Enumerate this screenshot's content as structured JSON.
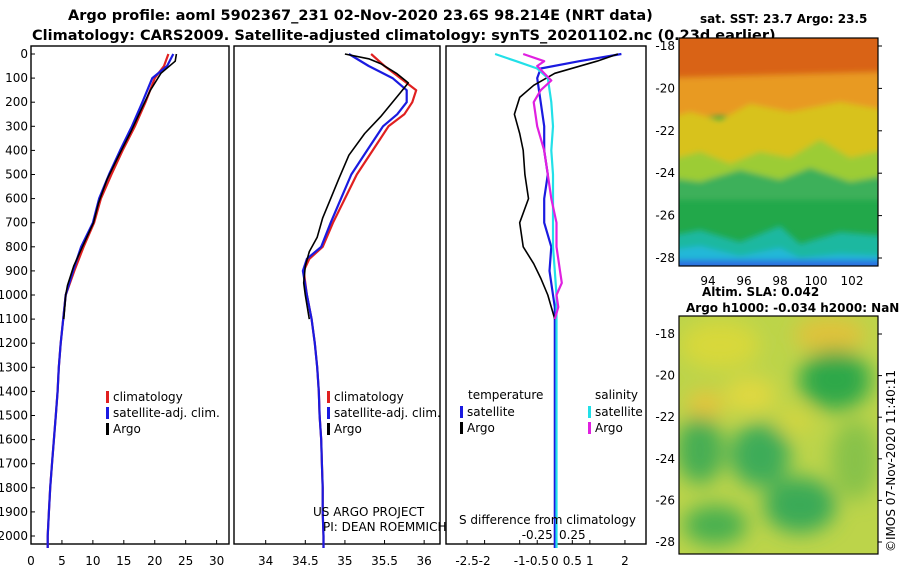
{
  "header": {
    "line1": "Argo profile: aoml 5902367_231 02-Nov-2020 23.6S 98.214E (NRT data)",
    "line2": "Climatology: CARS2009. Satellite-adjusted climatology: synTS_20201102.nc (0.23d earlier)"
  },
  "colors": {
    "climatology": "#e02020",
    "satellite": "#1a1ae0",
    "argo": "#000000",
    "sat_salinity": "#22e0e8",
    "argo_salinity": "#e020e0"
  },
  "chart_data": [
    {
      "id": "temperature_profile",
      "type": "line",
      "xlabel": "",
      "ylabel": "",
      "xlim": [
        0,
        32
      ],
      "ylim": [
        2050,
        0
      ],
      "xticks": [
        0,
        5,
        10,
        15,
        20,
        25,
        30
      ],
      "yticks": [
        0,
        100,
        200,
        300,
        400,
        500,
        600,
        700,
        800,
        900,
        1000,
        1100,
        1200,
        1300,
        1400,
        1500,
        1600,
        1700,
        1800,
        1900,
        2000
      ],
      "legend": [
        "climatology",
        "satellite-adj. clim.",
        "Argo"
      ],
      "legend_position": "bottom-right",
      "series": [
        {
          "name": "climatology",
          "color": "red",
          "points": [
            [
              22.2,
              0
            ],
            [
              21.5,
              50
            ],
            [
              20,
              100
            ],
            [
              18.5,
              200
            ],
            [
              16.8,
              300
            ],
            [
              14.8,
              400
            ],
            [
              13.0,
              500
            ],
            [
              11.3,
              600
            ],
            [
              10.2,
              700
            ],
            [
              8.5,
              800
            ],
            [
              7.0,
              900
            ],
            [
              5.6,
              1000
            ],
            [
              5.2,
              1100
            ],
            [
              4.8,
              1200
            ],
            [
              4.5,
              1300
            ],
            [
              4.3,
              1400
            ],
            [
              4.0,
              1500
            ],
            [
              3.7,
              1600
            ],
            [
              3.4,
              1700
            ],
            [
              3.1,
              1800
            ],
            [
              2.9,
              1900
            ],
            [
              2.7,
              2000
            ],
            [
              2.7,
              2050
            ]
          ]
        },
        {
          "name": "satellite-adj. clim.",
          "color": "blue",
          "points": [
            [
              23.0,
              0
            ],
            [
              22.0,
              50
            ],
            [
              19.6,
              100
            ],
            [
              18.0,
              200
            ],
            [
              16.3,
              300
            ],
            [
              14.4,
              400
            ],
            [
              12.6,
              500
            ],
            [
              11.0,
              600
            ],
            [
              10.0,
              700
            ],
            [
              8.1,
              800
            ],
            [
              6.8,
              900
            ],
            [
              5.6,
              1000
            ],
            [
              5.2,
              1100
            ],
            [
              4.8,
              1200
            ],
            [
              4.5,
              1300
            ],
            [
              4.3,
              1400
            ],
            [
              4.0,
              1500
            ],
            [
              3.7,
              1600
            ],
            [
              3.4,
              1700
            ],
            [
              3.1,
              1800
            ],
            [
              2.9,
              1900
            ],
            [
              2.7,
              2000
            ],
            [
              2.7,
              2050
            ]
          ]
        },
        {
          "name": "Argo",
          "color": "black",
          "points": [
            [
              23.5,
              0
            ],
            [
              23.3,
              30
            ],
            [
              21.0,
              80
            ],
            [
              19.3,
              150
            ],
            [
              18.0,
              220
            ],
            [
              16.2,
              320
            ],
            [
              14.2,
              420
            ],
            [
              12.3,
              520
            ],
            [
              10.9,
              620
            ],
            [
              10.1,
              700
            ],
            [
              8.3,
              800
            ],
            [
              6.9,
              880
            ],
            [
              5.9,
              960
            ],
            [
              5.6,
              1000
            ],
            [
              5.3,
              1100
            ]
          ]
        }
      ]
    },
    {
      "id": "salinity_profile",
      "type": "line",
      "xlim": [
        33.6,
        36.2
      ],
      "ylim": [
        2050,
        0
      ],
      "xticks": [
        34,
        34.5,
        35,
        35.5,
        36
      ],
      "xticklabels": [
        "34",
        "34.5",
        "35",
        "35.5",
        "36"
      ],
      "legend": [
        "climatology",
        "satellite-adj. clim.",
        "Argo"
      ],
      "legend_position": "bottom-right",
      "annotation": [
        "US ARGO PROJECT",
        "PI: DEAN ROEMMICH"
      ],
      "series": [
        {
          "name": "climatology",
          "color": "red",
          "points": [
            [
              35.33,
              0
            ],
            [
              35.5,
              50
            ],
            [
              35.7,
              100
            ],
            [
              35.9,
              150
            ],
            [
              35.85,
              200
            ],
            [
              35.75,
              250
            ],
            [
              35.55,
              300
            ],
            [
              35.35,
              400
            ],
            [
              35.15,
              500
            ],
            [
              35.0,
              600
            ],
            [
              34.85,
              700
            ],
            [
              34.72,
              800
            ],
            [
              34.55,
              850
            ],
            [
              34.48,
              900
            ],
            [
              34.52,
              1000
            ],
            [
              34.58,
              1100
            ],
            [
              34.62,
              1200
            ],
            [
              34.65,
              1300
            ],
            [
              34.67,
              1400
            ],
            [
              34.68,
              1500
            ],
            [
              34.7,
              1600
            ],
            [
              34.71,
              1700
            ],
            [
              34.72,
              1800
            ],
            [
              34.72,
              1900
            ],
            [
              34.73,
              2000
            ],
            [
              34.73,
              2050
            ]
          ]
        },
        {
          "name": "satellite-adj. clim.",
          "color": "blue",
          "points": [
            [
              35.05,
              0
            ],
            [
              35.3,
              50
            ],
            [
              35.6,
              100
            ],
            [
              35.78,
              150
            ],
            [
              35.78,
              200
            ],
            [
              35.66,
              250
            ],
            [
              35.48,
              300
            ],
            [
              35.28,
              400
            ],
            [
              35.08,
              500
            ],
            [
              34.95,
              600
            ],
            [
              34.82,
              700
            ],
            [
              34.7,
              800
            ],
            [
              34.52,
              850
            ],
            [
              34.47,
              900
            ],
            [
              34.52,
              1000
            ],
            [
              34.58,
              1100
            ],
            [
              34.62,
              1200
            ],
            [
              34.65,
              1300
            ],
            [
              34.67,
              1400
            ],
            [
              34.68,
              1500
            ],
            [
              34.7,
              1600
            ],
            [
              34.71,
              1700
            ],
            [
              34.72,
              1800
            ],
            [
              34.72,
              1900
            ],
            [
              34.73,
              2000
            ],
            [
              34.73,
              2050
            ]
          ]
        },
        {
          "name": "Argo",
          "color": "black",
          "points": [
            [
              35.0,
              0
            ],
            [
              35.3,
              20
            ],
            [
              35.45,
              40
            ],
            [
              35.65,
              80
            ],
            [
              35.8,
              120
            ],
            [
              35.7,
              160
            ],
            [
              35.6,
              200
            ],
            [
              35.45,
              260
            ],
            [
              35.25,
              330
            ],
            [
              35.05,
              420
            ],
            [
              34.92,
              520
            ],
            [
              34.82,
              600
            ],
            [
              34.72,
              680
            ],
            [
              34.65,
              760
            ],
            [
              34.55,
              820
            ],
            [
              34.5,
              880
            ],
            [
              34.48,
              950
            ],
            [
              34.5,
              1000
            ],
            [
              34.55,
              1100
            ]
          ]
        }
      ]
    },
    {
      "id": "difference_profile",
      "type": "line",
      "xlim": [
        -3.1,
        2.6
      ],
      "ylim": [
        2050,
        0
      ],
      "xticks": [
        -2.5,
        -2,
        -1,
        -0.5,
        0,
        0.5,
        1,
        2
      ],
      "xticklabels": [
        "-2.5",
        "-2",
        "-1",
        "-0.5",
        "0",
        "0.5",
        "1",
        "2"
      ],
      "xlabel": "S difference from climatology",
      "salinity_ticks": [
        -0.25,
        0.25
      ],
      "salinity_ticklabels": [
        "-0.25",
        "0.25"
      ],
      "legend_left_title": "temperature",
      "legend_right_title": "salinity",
      "legend": [
        "satellite",
        "Argo",
        "satellite",
        "Argo"
      ],
      "series": [
        {
          "name": "temperature satellite",
          "color": "blue",
          "points": [
            [
              1.9,
              0
            ],
            [
              0.7,
              30
            ],
            [
              -0.4,
              60
            ],
            [
              -0.5,
              100
            ],
            [
              -0.4,
              200
            ],
            [
              -0.3,
              300
            ],
            [
              -0.3,
              400
            ],
            [
              -0.2,
              500
            ],
            [
              -0.3,
              600
            ],
            [
              -0.3,
              700
            ],
            [
              -0.1,
              800
            ],
            [
              -0.15,
              900
            ],
            [
              -0.05,
              1000
            ],
            [
              0,
              1050
            ],
            [
              0,
              1100
            ],
            [
              0,
              2050
            ]
          ]
        },
        {
          "name": "temperature Argo",
          "color": "black",
          "points": [
            [
              1.8,
              0
            ],
            [
              1.2,
              30
            ],
            [
              0,
              80
            ],
            [
              -0.6,
              130
            ],
            [
              -1.0,
              180
            ],
            [
              -1.15,
              250
            ],
            [
              -1.0,
              330
            ],
            [
              -0.9,
              400
            ],
            [
              -0.85,
              500
            ],
            [
              -0.75,
              600
            ],
            [
              -1.0,
              700
            ],
            [
              -0.9,
              800
            ],
            [
              -0.6,
              870
            ],
            [
              -0.4,
              930
            ],
            [
              -0.2,
              1000
            ],
            [
              -0.1,
              1050
            ],
            [
              0,
              1100
            ]
          ]
        },
        {
          "name": "salinity satellite",
          "color": "cyan",
          "points": [
            [
              -1.7,
              0
            ],
            [
              -1.1,
              30
            ],
            [
              -0.5,
              60
            ],
            [
              -0.2,
              100
            ],
            [
              -0.1,
              200
            ],
            [
              -0.05,
              300
            ],
            [
              -0.1,
              400
            ],
            [
              -0.05,
              500
            ],
            [
              -0.05,
              600
            ],
            [
              -0.05,
              700
            ],
            [
              -0.05,
              800
            ],
            [
              0,
              900
            ],
            [
              0.05,
              1000
            ],
            [
              0.05,
              1100
            ],
            [
              0.05,
              1200
            ],
            [
              0.05,
              1400
            ],
            [
              0.05,
              1600
            ],
            [
              0.05,
              1800
            ],
            [
              0.05,
              2000
            ],
            [
              0.05,
              2050
            ]
          ]
        },
        {
          "name": "salinity Argo",
          "color": "magenta",
          "points": [
            [
              -0.9,
              0
            ],
            [
              -0.3,
              30
            ],
            [
              -0.5,
              50
            ],
            [
              -0.3,
              80
            ],
            [
              -0.1,
              110
            ],
            [
              -0.4,
              150
            ],
            [
              -0.6,
              200
            ],
            [
              -0.5,
              300
            ],
            [
              -0.3,
              400
            ],
            [
              -0.2,
              500
            ],
            [
              -0.1,
              600
            ],
            [
              0.05,
              700
            ],
            [
              0.05,
              800
            ],
            [
              0.15,
              900
            ],
            [
              0.2,
              950
            ],
            [
              0.05,
              1000
            ],
            [
              0.1,
              1050
            ],
            [
              0,
              1100
            ]
          ]
        }
      ]
    },
    {
      "id": "sst_map",
      "type": "heatmap",
      "title": "sat. SST: 23.7 Argo: 23.5",
      "xticks": [
        94,
        96,
        98,
        100,
        102
      ],
      "yticks": [
        -18,
        -20,
        -22,
        -24,
        -26,
        -28
      ]
    },
    {
      "id": "sla_map",
      "type": "heatmap",
      "title_line1": "Altim. SLA: 0.042",
      "title_line2": "Argo h1000: -0.034 h2000: NaN",
      "yticks": [
        -18,
        -20,
        -22,
        -24,
        -26,
        -28
      ]
    }
  ],
  "credit": "©IMOS 07-Nov-2020 11:40:11"
}
